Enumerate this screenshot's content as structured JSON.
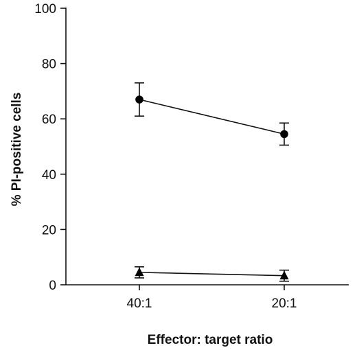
{
  "chart_data": {
    "type": "line",
    "title": "",
    "xlabel": "Effector: target ratio",
    "ylabel": "% PI-positive cells",
    "categories": [
      "40:1",
      "20:1"
    ],
    "ylim": [
      0,
      100
    ],
    "yticks": [
      0,
      20,
      40,
      60,
      80,
      100
    ],
    "grid": false,
    "legend": "none",
    "series": [
      {
        "marker": "circle",
        "values": [
          67,
          54.5
        ],
        "errors": [
          6,
          4
        ]
      },
      {
        "marker": "triangle",
        "values": [
          4.5,
          3.3
        ],
        "errors": [
          2,
          2
        ]
      }
    ],
    "colors": {
      "line": "#111111",
      "marker": "#000000"
    }
  }
}
